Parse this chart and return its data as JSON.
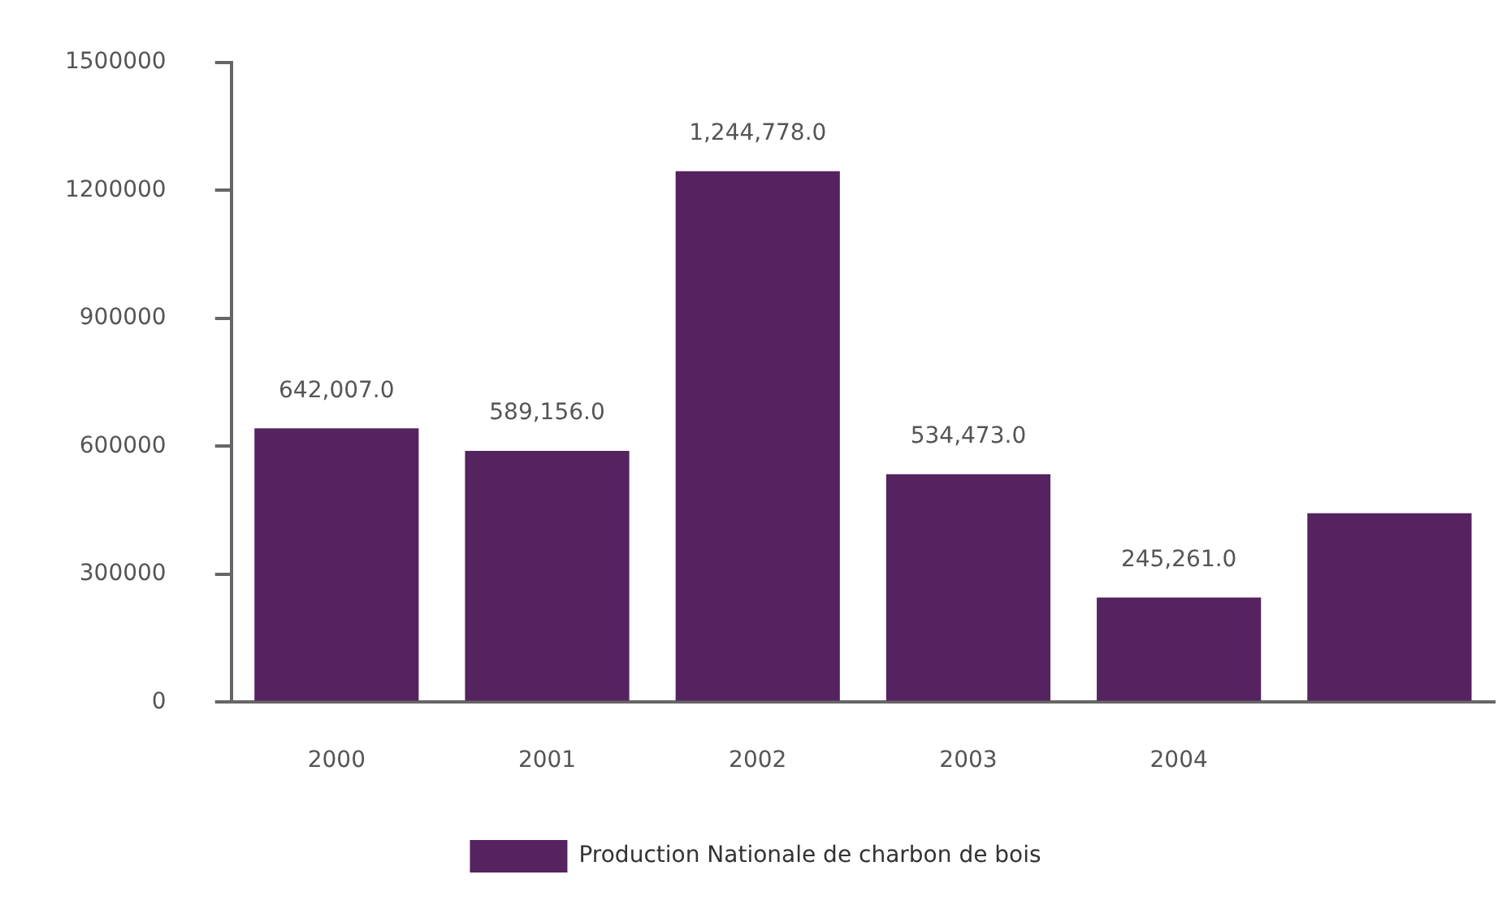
{
  "chart_data": {
    "type": "bar",
    "categories": [
      "2000",
      "2001",
      "2002",
      "2003",
      "2004",
      null
    ],
    "series": [
      {
        "name": "Production Nationale de charbon de bois",
        "color": "#55235f",
        "values": [
          642007,
          589156,
          1244778,
          534473,
          245261,
          443000
        ],
        "value_labels": [
          "642,007.0",
          "589,156.0",
          "1,244,778.0",
          "534,473.0",
          "245,261.0",
          null
        ]
      }
    ],
    "ylim": [
      0,
      1500000
    ],
    "yticks": [
      0,
      300000,
      600000,
      900000,
      1200000,
      1500000
    ],
    "grid": false,
    "legend": "bottom"
  }
}
